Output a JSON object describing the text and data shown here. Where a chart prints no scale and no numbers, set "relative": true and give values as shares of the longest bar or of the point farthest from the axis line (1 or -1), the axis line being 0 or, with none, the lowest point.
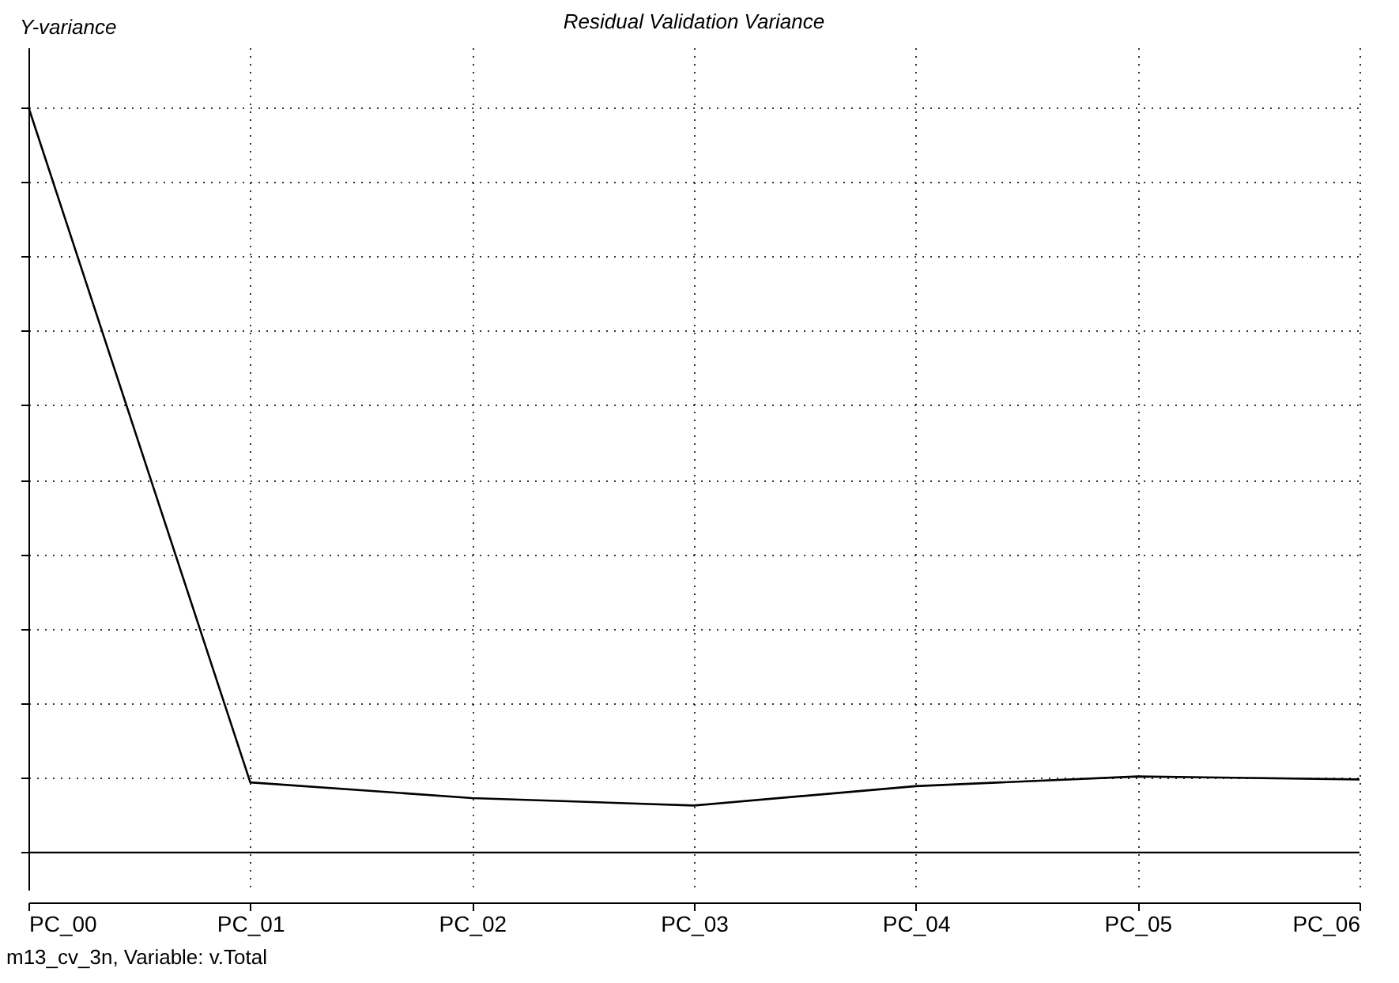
{
  "chart_data": {
    "type": "line",
    "title": "Residual Validation Variance",
    "ylabel": "Y-variance",
    "relative": true,
    "grid": true,
    "line_style": "solid",
    "marker": "none",
    "categories": [
      "PC_00",
      "PC_01",
      "PC_02",
      "PC_03",
      "PC_04",
      "PC_05",
      "PC_06"
    ],
    "series": [
      {
        "color": "#000000",
        "values": [
          1,
          0.094,
          0.073,
          0.063,
          0.089,
          0.102,
          0.098
        ]
      }
    ],
    "annotations": [
      "m13_cv_3n, Variable: v.Total"
    ]
  }
}
